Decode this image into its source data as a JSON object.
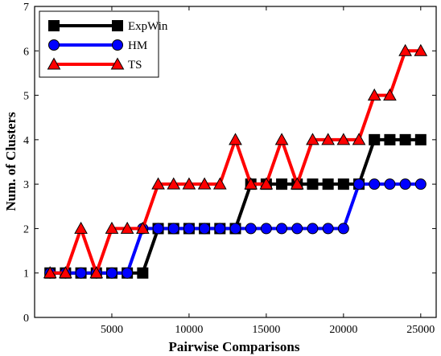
{
  "chart_data": {
    "type": "line",
    "xlabel": "Pairwise Comparisons",
    "ylabel": "Num. of Clusters",
    "xlim": [
      0,
      26000
    ],
    "ylim": [
      0,
      7
    ],
    "xticks": [
      5000,
      10000,
      15000,
      20000,
      25000
    ],
    "yticks": [
      0,
      1,
      2,
      3,
      4,
      5,
      6,
      7
    ],
    "xtick_labels": [
      "5000",
      "10000",
      "15000",
      "20000",
      "25000"
    ],
    "ytick_labels": [
      "0",
      "1",
      "2",
      "3",
      "4",
      "5",
      "6",
      "7"
    ],
    "grid": false,
    "legend_position": "top-left",
    "x": [
      1000,
      2000,
      3000,
      4000,
      5000,
      6000,
      7000,
      8000,
      9000,
      10000,
      11000,
      12000,
      13000,
      14000,
      15000,
      16000,
      17000,
      18000,
      19000,
      20000,
      21000,
      22000,
      23000,
      24000,
      25000
    ],
    "series": [
      {
        "name": "ExpWin",
        "color": "#000000",
        "marker": "square",
        "values": [
          1,
          1,
          1,
          1,
          1,
          1,
          1,
          2,
          2,
          2,
          2,
          2,
          2,
          3,
          3,
          3,
          3,
          3,
          3,
          3,
          3,
          4,
          4,
          4,
          4
        ]
      },
      {
        "name": "HM",
        "color": "#0000ff",
        "marker": "circle",
        "values": [
          1,
          1,
          1,
          1,
          1,
          1,
          2,
          2,
          2,
          2,
          2,
          2,
          2,
          2,
          2,
          2,
          2,
          2,
          2,
          2,
          3,
          3,
          3,
          3,
          3
        ]
      },
      {
        "name": "TS",
        "color": "#ff0000",
        "marker": "triangle",
        "values": [
          1,
          1,
          2,
          1,
          2,
          2,
          2,
          3,
          3,
          3,
          3,
          3,
          4,
          3,
          3,
          4,
          3,
          4,
          4,
          4,
          4,
          5,
          5,
          6,
          6
        ]
      }
    ]
  }
}
